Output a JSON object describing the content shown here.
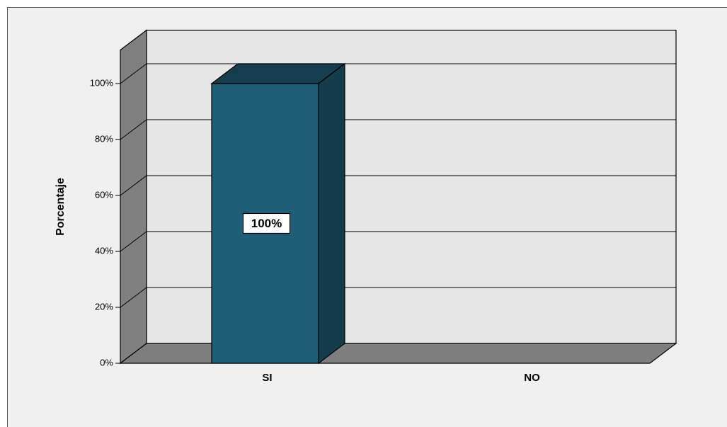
{
  "chart_data": {
    "type": "bar",
    "categories": [
      "SI",
      "NO"
    ],
    "values": [
      100,
      0
    ],
    "data_labels": [
      "100%",
      ""
    ],
    "title": "",
    "xlabel": "",
    "ylabel": "Porcentaje",
    "ylim": [
      0,
      100
    ],
    "yticks": [
      0,
      20,
      40,
      60,
      80,
      100
    ],
    "ytick_labels": [
      "0%",
      "20%",
      "40%",
      "60%",
      "80%",
      "100%"
    ],
    "grid": true,
    "three_d": true,
    "colors": {
      "bar_front": "#1e5f77",
      "bar_top": "#163d4d",
      "bar_side": "#153c4a",
      "back_wall": "#e6e6e6",
      "side_wall": "#808080",
      "floor": "#7f7f7f",
      "background": "#f0f0f0"
    }
  }
}
